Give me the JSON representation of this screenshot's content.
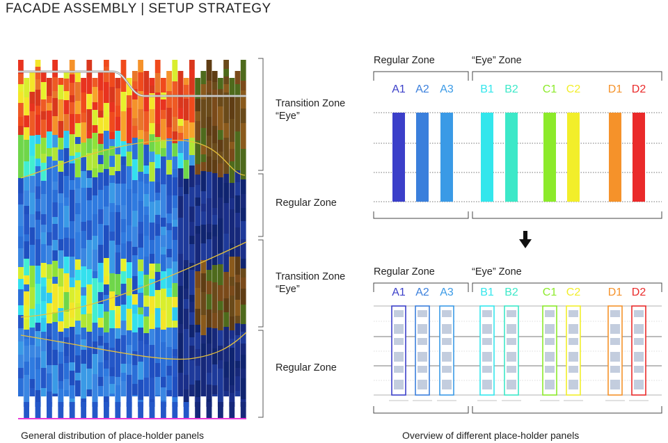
{
  "title": "FACADE ASSEMBLY | SETUP STRATEGY",
  "left_zones": [
    {
      "line1": "Transition Zone",
      "line2": "“Eye”"
    },
    {
      "line1": "Regular Zone",
      "line2": ""
    },
    {
      "line1": "Transition Zone",
      "line2": "“Eye”"
    },
    {
      "line1": "Regular Zone",
      "line2": ""
    }
  ],
  "captions": {
    "left": "General distribution of place-holder panels",
    "right": "Overview of different place-holder panels"
  },
  "right_zones": {
    "regular": "Regular Zone",
    "eye": "“Eye” Zone"
  },
  "panel_types": [
    {
      "label": "A1",
      "color": "#3b3fc9"
    },
    {
      "label": "A2",
      "color": "#3a7fdc"
    },
    {
      "label": "A3",
      "color": "#3a9ae6"
    },
    {
      "label": "B1",
      "color": "#33e6ec"
    },
    {
      "label": "B2",
      "color": "#3ce8c8"
    },
    {
      "label": "C1",
      "color": "#8cea2a"
    },
    {
      "label": "C2",
      "color": "#f2ee2a"
    },
    {
      "label": "D1",
      "color": "#f5922a"
    },
    {
      "label": "D2",
      "color": "#ea2a2a"
    }
  ],
  "arrow_icon": "down-arrow-icon"
}
